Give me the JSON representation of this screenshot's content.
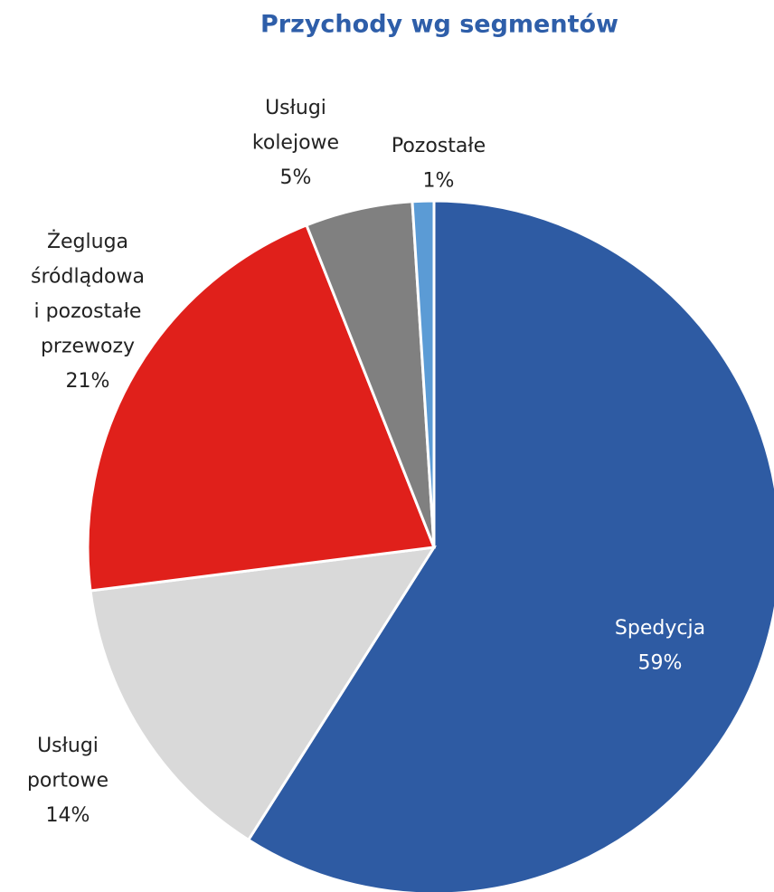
{
  "chart_data": {
    "type": "pie",
    "title": "Przychody wg segmentów",
    "categories": [
      "Spedycja",
      "Usługi portowe",
      "Żegluga śródlądowa i pozostałe przewozy",
      "Usługi kolejowe",
      "Pozostałe"
    ],
    "values": [
      59,
      14,
      21,
      5,
      1
    ],
    "value_labels": [
      "59%",
      "14%",
      "21%",
      "5%",
      "1%"
    ],
    "colors": [
      "#2e5ba3",
      "#d9d9d9",
      "#e0201b",
      "#808080",
      "#5b9bd5"
    ]
  }
}
